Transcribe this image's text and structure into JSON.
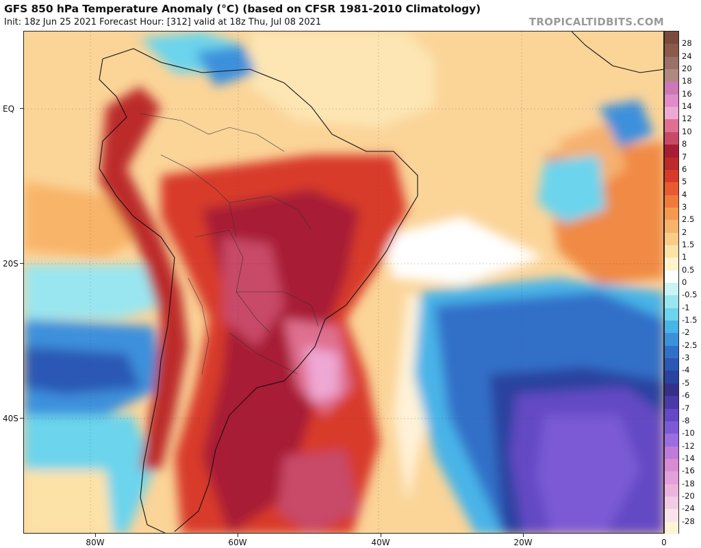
{
  "header": {
    "title": "GFS 850 hPa Temperature Anomaly (°C) (based on CFSR 1981-2010 Climatology)",
    "subtitle": "Init: 18z Jun 25 2021   Forecast Hour: [312]   valid at 18z Thu, Jul 08 2021",
    "brand": "TROPICALTIDBITS.COM"
  },
  "map": {
    "lat_labels": [
      "EQ",
      "20S",
      "40S"
    ],
    "lon_labels": [
      "80W",
      "60W",
      "40W",
      "20W",
      "0"
    ]
  },
  "colorbar": {
    "levels": [
      {
        "label": "28",
        "color": "#7a4a3c"
      },
      {
        "label": "24",
        "color": "#8a5a4c"
      },
      {
        "label": "20",
        "color": "#9c7064"
      },
      {
        "label": "18",
        "color": "#b08880"
      },
      {
        "label": "16",
        "color": "#cc78b4"
      },
      {
        "label": "14",
        "color": "#e08cc8"
      },
      {
        "label": "12",
        "color": "#eea8d4"
      },
      {
        "label": "10",
        "color": "#e07090"
      },
      {
        "label": "8",
        "color": "#c84868"
      },
      {
        "label": "7",
        "color": "#a81c34"
      },
      {
        "label": "6",
        "color": "#bc2a2a"
      },
      {
        "label": "5",
        "color": "#d83a2a"
      },
      {
        "label": "4",
        "color": "#e85a30"
      },
      {
        "label": "3",
        "color": "#f07a3c"
      },
      {
        "label": "2.5",
        "color": "#f49a50"
      },
      {
        "label": "2",
        "color": "#f8b468"
      },
      {
        "label": "1.5",
        "color": "#fbcc88"
      },
      {
        "label": "1",
        "color": "#fde2a8"
      },
      {
        "label": "0.5",
        "color": "#fff4cc"
      },
      {
        "label": "0",
        "color": "#ffffff"
      },
      {
        "label": "-0.5",
        "color": "#c8f4f4"
      },
      {
        "label": "-1",
        "color": "#9ae6f0"
      },
      {
        "label": "-1.5",
        "color": "#6cd4ec"
      },
      {
        "label": "-2",
        "color": "#48b4e8"
      },
      {
        "label": "-2.5",
        "color": "#3c90dc"
      },
      {
        "label": "-3",
        "color": "#3070c8"
      },
      {
        "label": "-4",
        "color": "#2a58b4"
      },
      {
        "label": "-5",
        "color": "#2a42a0"
      },
      {
        "label": "-6",
        "color": "#34308c"
      },
      {
        "label": "-7",
        "color": "#4a3aa8"
      },
      {
        "label": "-8",
        "color": "#6448c4"
      },
      {
        "label": "-10",
        "color": "#7c5ad6"
      },
      {
        "label": "-12",
        "color": "#9a6ee0"
      },
      {
        "label": "-14",
        "color": "#c07ad8"
      },
      {
        "label": "-16",
        "color": "#d88ad4"
      },
      {
        "label": "-18",
        "color": "#e4a0d8"
      },
      {
        "label": "-20",
        "color": "#ecb4dc"
      },
      {
        "label": "-24",
        "color": "#f2cce4"
      },
      {
        "label": "-28",
        "color": "#fae4ec"
      },
      {
        "label": "",
        "color": "#fff4d8"
      }
    ]
  }
}
